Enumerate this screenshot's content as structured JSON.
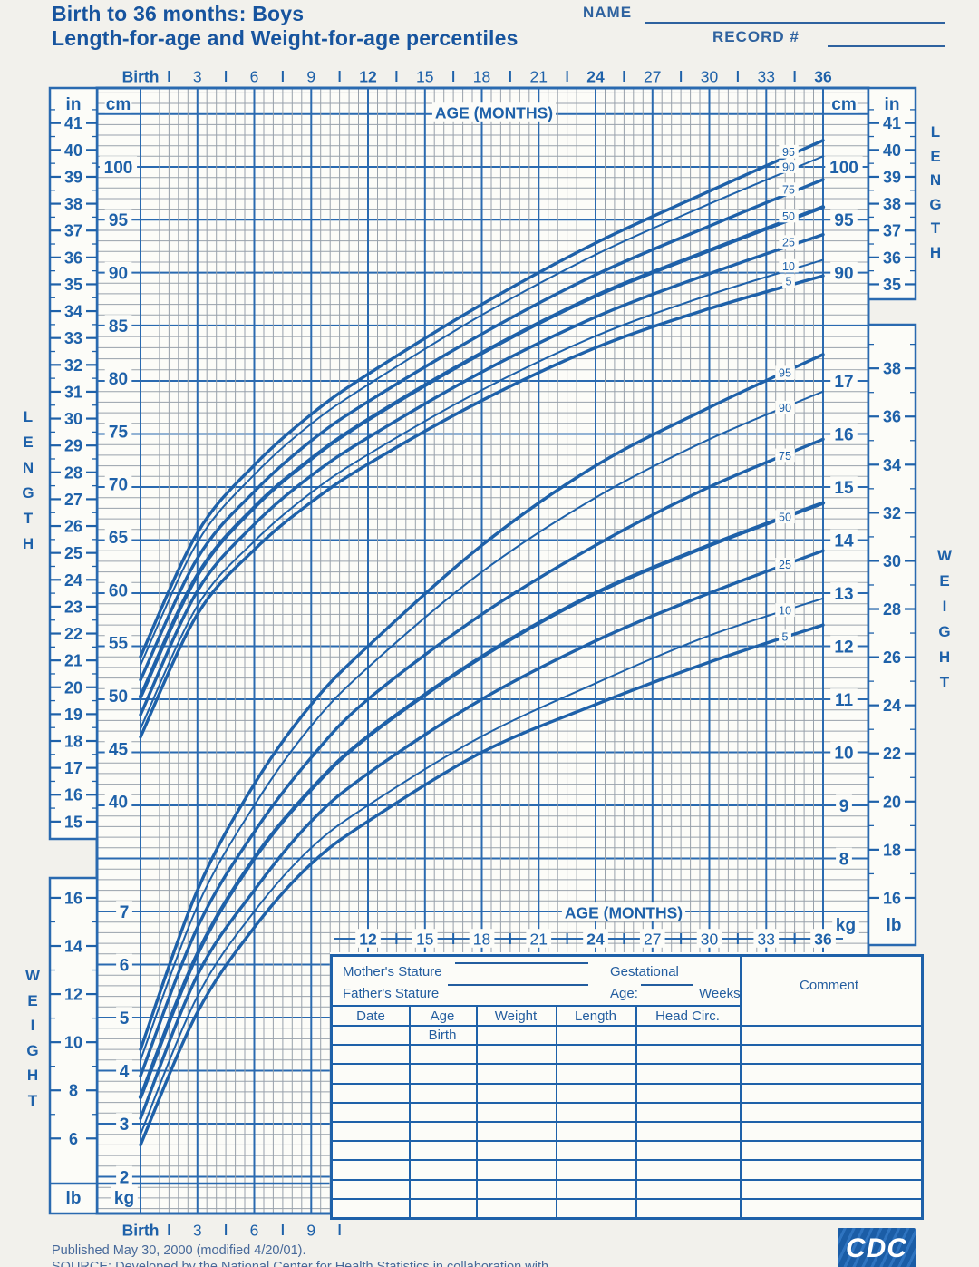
{
  "page": {
    "background": "#f2f1ec",
    "accent_blue": "#1e61a9",
    "minor_grid": "#98a1ac"
  },
  "header": {
    "title_line1": "Birth to 36 months: Boys",
    "title_line2": "Length-for-age and Weight-for-age percentiles",
    "name_label": "NAME",
    "record_label": "RECORD #"
  },
  "axes": {
    "age_axis_title": "AGE (MONTHS)",
    "top_month_labels": [
      {
        "month": 0,
        "label": "Birth",
        "bold": true
      },
      {
        "month": 3,
        "label": "3",
        "bold": false
      },
      {
        "month": 6,
        "label": "6",
        "bold": false
      },
      {
        "month": 9,
        "label": "9",
        "bold": false
      },
      {
        "month": 12,
        "label": "12",
        "bold": true
      },
      {
        "month": 15,
        "label": "15",
        "bold": false
      },
      {
        "month": 18,
        "label": "18",
        "bold": false
      },
      {
        "month": 21,
        "label": "21",
        "bold": false
      },
      {
        "month": 24,
        "label": "24",
        "bold": true
      },
      {
        "month": 27,
        "label": "27",
        "bold": false
      },
      {
        "month": 30,
        "label": "30",
        "bold": false
      },
      {
        "month": 33,
        "label": "33",
        "bold": false
      },
      {
        "month": 36,
        "label": "36",
        "bold": true
      }
    ],
    "inner_bottom_month_labels": [
      {
        "month": 12,
        "label": "12",
        "bold": true
      },
      {
        "month": 15,
        "label": "15",
        "bold": false
      },
      {
        "month": 18,
        "label": "18",
        "bold": false
      },
      {
        "month": 21,
        "label": "21",
        "bold": false
      },
      {
        "month": 24,
        "label": "24",
        "bold": true
      },
      {
        "month": 27,
        "label": "27",
        "bold": false
      },
      {
        "month": 30,
        "label": "30",
        "bold": false
      },
      {
        "month": 33,
        "label": "33",
        "bold": false
      },
      {
        "month": 36,
        "label": "36",
        "bold": true
      }
    ],
    "outer_bottom_month_labels": [
      {
        "month": 0,
        "label": "Birth",
        "bold": true
      },
      {
        "month": 3,
        "label": "3",
        "bold": false
      },
      {
        "month": 6,
        "label": "6",
        "bold": false
      },
      {
        "month": 9,
        "label": "9",
        "bold": false
      }
    ],
    "left_cm_labels": [
      100,
      95,
      90,
      85,
      80,
      75,
      70,
      65,
      60,
      55,
      50,
      45,
      40
    ],
    "right_cm_labels": [
      100,
      95,
      90
    ],
    "left_in_labels": [
      41,
      40,
      39,
      38,
      37,
      36,
      35,
      34,
      33,
      32,
      31,
      30,
      29,
      28,
      27,
      26,
      25,
      24,
      23,
      22,
      21,
      20,
      19,
      18,
      17,
      16,
      15
    ],
    "right_in_labels": [
      41,
      40,
      39,
      38,
      37,
      36,
      35
    ],
    "right_kg_labels": [
      17,
      16,
      15,
      14,
      13,
      12,
      11,
      10,
      9,
      8
    ],
    "left_kg_labels": [
      7,
      6,
      5,
      4,
      3,
      2
    ],
    "right_lb_labels": [
      38,
      36,
      34,
      32,
      30,
      28,
      26,
      24,
      22,
      20,
      18,
      16
    ],
    "left_lb_labels": [
      16,
      14,
      12,
      10,
      8,
      6
    ],
    "units": {
      "cm": "cm",
      "in": "in",
      "kg": "kg",
      "lb": "lb"
    },
    "side_labels": {
      "length_word": "LENGTH",
      "weight_word": "WEIGHT"
    }
  },
  "chart_data": {
    "type": "line",
    "title": "Birth to 36 months: Boys, Length-for-age and Weight-for-age percentiles",
    "xlabel": "AGE (MONTHS)",
    "x_axis": {
      "range_months": [
        0,
        36
      ],
      "major_tick_months": 3,
      "minor_tick_months": 0.5
    },
    "y_axis_length": {
      "label": "LENGTH",
      "units": [
        "cm",
        "in"
      ],
      "cm_range": [
        40,
        105
      ]
    },
    "y_axis_weight": {
      "label": "WEIGHT",
      "units": [
        "kg",
        "lb"
      ],
      "kg_range": [
        2,
        18
      ]
    },
    "percentile_labels": [
      "95",
      "90",
      "75",
      "50",
      "25",
      "10",
      "5"
    ],
    "x_months": [
      0,
      3,
      6,
      9,
      12,
      18,
      24,
      30,
      36
    ],
    "length_cm": {
      "p5": [
        46.1,
        57.7,
        63.8,
        68.3,
        71.9,
        77.9,
        82.9,
        86.6,
        89.7
      ],
      "p10": [
        46.9,
        58.5,
        64.6,
        69.2,
        72.8,
        78.9,
        84.0,
        87.9,
        91.2
      ],
      "p25": [
        48.2,
        59.9,
        66.2,
        70.8,
        74.4,
        80.6,
        85.8,
        89.9,
        93.6
      ],
      "p50": [
        49.9,
        61.4,
        67.8,
        72.4,
        76.1,
        82.4,
        87.8,
        92.1,
        96.2
      ],
      "p75": [
        51.5,
        63.0,
        69.3,
        74.1,
        77.8,
        84.2,
        89.8,
        94.4,
        98.8
      ],
      "p90": [
        52.9,
        64.5,
        70.9,
        75.7,
        79.4,
        86.0,
        91.7,
        96.5,
        101.0
      ],
      "p95": [
        53.7,
        65.4,
        71.8,
        76.6,
        80.4,
        87.0,
        92.8,
        97.7,
        102.5
      ]
    },
    "weight_kg": {
      "p5": [
        2.6,
        5.1,
        6.7,
        7.9,
        8.7,
        10.0,
        10.9,
        11.7,
        12.4
      ],
      "p10": [
        2.8,
        5.4,
        7.0,
        8.2,
        9.0,
        10.3,
        11.3,
        12.2,
        12.9
      ],
      "p25": [
        3.1,
        5.8,
        7.4,
        8.7,
        9.6,
        11.0,
        12.1,
        13.0,
        13.8
      ],
      "p50": [
        3.5,
        6.2,
        8.0,
        9.3,
        10.3,
        11.8,
        13.0,
        13.9,
        14.7
      ],
      "p75": [
        3.9,
        6.7,
        8.5,
        9.9,
        11.0,
        12.6,
        13.9,
        15.0,
        15.9
      ],
      "p90": [
        4.2,
        7.1,
        9.0,
        10.5,
        11.6,
        13.4,
        14.8,
        15.9,
        16.8
      ],
      "p95": [
        4.4,
        7.4,
        9.4,
        10.9,
        12.0,
        13.9,
        15.4,
        16.5,
        17.5
      ]
    },
    "legend_position": "curve-end-labels",
    "grid": true
  },
  "table": {
    "mothers_stature_label": "Mother's Stature",
    "fathers_stature_label": "Father's Stature",
    "gestational_label": "Gestational",
    "age_label": "Age:",
    "weeks_label": "Weeks",
    "comment_label": "Comment",
    "columns": [
      "Date",
      "Age",
      "Weight",
      "Length",
      "Head Circ."
    ],
    "first_row_age_value": "Birth",
    "data_row_count": 10
  },
  "footer": {
    "published_line": "Published May 30, 2000 (modified 4/20/01).",
    "source_line": "SOURCE: Developed by the National Center for Health Statistics in collaboration with",
    "logo_text": "CDC"
  }
}
